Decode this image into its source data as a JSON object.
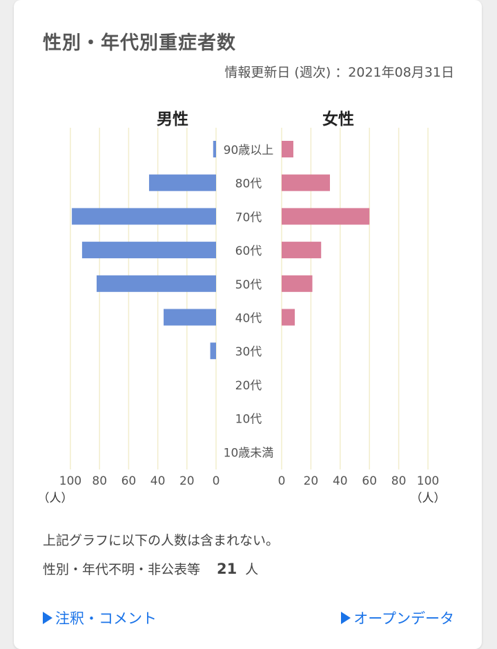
{
  "header": {
    "title": "性別・年代別重症者数",
    "updated": "情報更新日 (週次) ：2021年08月31日"
  },
  "chart_data": {
    "type": "bar",
    "orientation": "horizontal-butterfly",
    "male_label": "男性",
    "female_label": "女性",
    "categories": [
      "90歳以上",
      "80代",
      "70代",
      "60代",
      "50代",
      "40代",
      "30代",
      "20代",
      "10代",
      "10歳未満"
    ],
    "series": [
      {
        "name": "男性",
        "values": [
          2,
          46,
          99,
          92,
          82,
          36,
          4,
          0,
          0,
          0
        ]
      },
      {
        "name": "女性",
        "values": [
          8,
          33,
          60,
          27,
          21,
          9,
          0,
          0,
          0,
          0
        ]
      }
    ],
    "xlim": [
      0,
      100
    ],
    "ticks": [
      0,
      20,
      40,
      60,
      80,
      100
    ],
    "unit_label": "（人）",
    "colors": {
      "male": "#6a8fd6",
      "female": "#d97e98",
      "grid": "#f2edcc"
    }
  },
  "notes": {
    "line1": "上記グラフに以下の人数は含まれない。",
    "line2_label": "性別・年代不明・非公表等",
    "line2_count": "21",
    "line2_unit": "人"
  },
  "links": {
    "comments": "注釈・コメント",
    "open_data": "オープンデータ"
  }
}
